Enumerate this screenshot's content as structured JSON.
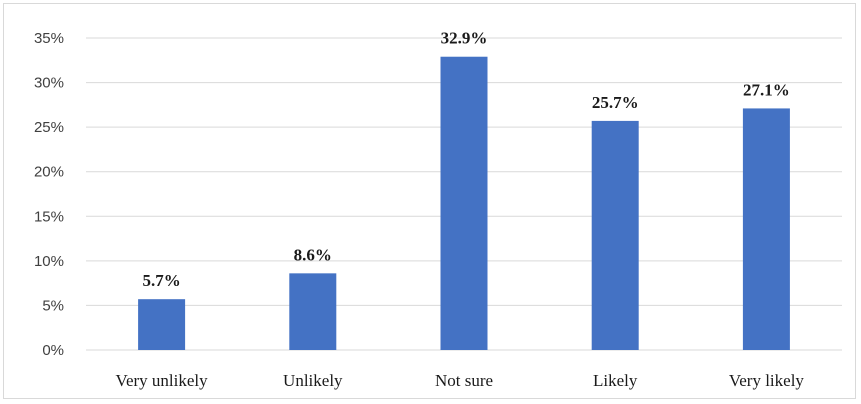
{
  "chart_data": {
    "type": "bar",
    "title": "",
    "xlabel": "",
    "ylabel": "",
    "categories": [
      "Very unlikely",
      "Unlikely",
      "Not sure",
      "Likely",
      "Very likely"
    ],
    "values": [
      5.7,
      8.6,
      32.9,
      25.7,
      27.1
    ],
    "data_labels": [
      "5.7%",
      "8.6%",
      "32.9%",
      "25.7%",
      "27.1%"
    ],
    "ylim": [
      0,
      35
    ],
    "yticks": [
      0,
      5,
      10,
      15,
      20,
      25,
      30,
      35
    ],
    "ytick_labels": [
      "0%",
      "5%",
      "10%",
      "15%",
      "20%",
      "25%",
      "30%",
      "35%"
    ],
    "grid": true,
    "legend": "none",
    "colors": {
      "bar": "#4472c4",
      "grid": "#d9d9d9"
    }
  }
}
